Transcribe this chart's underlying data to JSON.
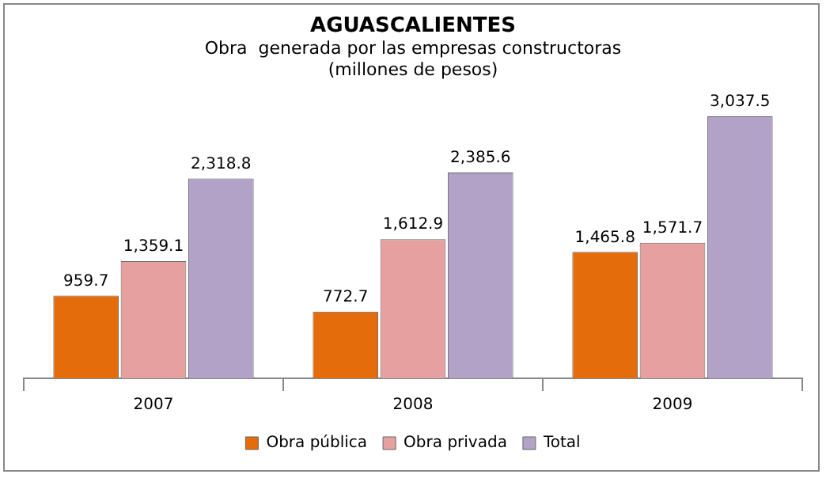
{
  "chart_data": {
    "type": "bar",
    "title": "AGUASCALIENTES",
    "subtitle": "Obra  generada por las empresas constructoras\n(millones de pesos)",
    "categories": [
      "2007",
      "2008",
      "2009"
    ],
    "series": [
      {
        "name": "Obra pública",
        "color": "#e46c0a",
        "values": [
          959.7,
          772.7,
          1465.8
        ],
        "value_labels": [
          "959.7",
          "772.7",
          "1,465.8"
        ]
      },
      {
        "name": "Obra privada",
        "color": "#e6a0a0",
        "values": [
          1359.1,
          1612.9,
          1571.7
        ],
        "value_labels": [
          "1,359.1",
          "1,612.9",
          "1,571.7"
        ]
      },
      {
        "name": "Total",
        "color": "#b3a2c7",
        "values": [
          2318.8,
          2385.6,
          3037.5
        ],
        "value_labels": [
          "2,318.8",
          "2,385.6",
          "3,037.5"
        ]
      }
    ],
    "grid": false,
    "legend": "bottom"
  }
}
